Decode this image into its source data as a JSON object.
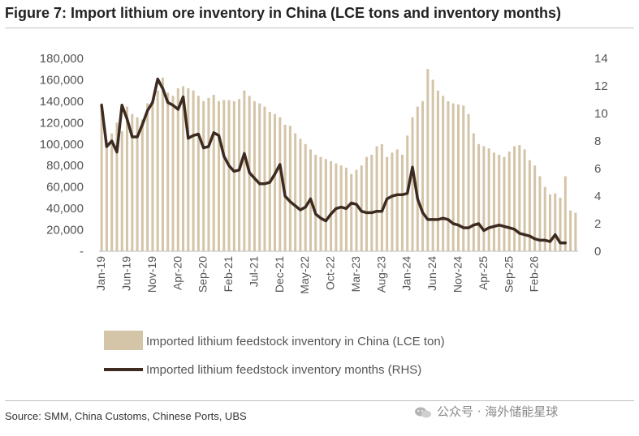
{
  "title": "Figure 7: Import lithium ore inventory in China (LCE tons and inventory months)",
  "source": "Source: SMM, China Customs, Chinese Ports, UBS",
  "watermark": "公众号 · 海外储能星球",
  "colors": {
    "bar": "#d4c4a8",
    "line": "#3d2b22",
    "rule": "#bfbfbf"
  },
  "chart_data": {
    "type": "bar",
    "left_axis": {
      "ylim": [
        0,
        180000
      ],
      "ticks": [
        0,
        20000,
        40000,
        60000,
        80000,
        100000,
        120000,
        140000,
        160000,
        180000
      ],
      "tick_labels": [
        "-",
        "20,000",
        "40,000",
        "60,000",
        "80,000",
        "100,000",
        "120,000",
        "140,000",
        "160,000",
        "180,000"
      ]
    },
    "right_axis": {
      "ylim": [
        0,
        14
      ],
      "ticks": [
        0,
        2,
        4,
        6,
        8,
        10,
        12,
        14
      ],
      "tick_labels": [
        "0",
        "2",
        "4",
        "6",
        "8",
        "10",
        "12",
        "14"
      ]
    },
    "x_tick_labels": [
      "Jan-19",
      "Jun-19",
      "Nov-19",
      "Apr-20",
      "Sep-20",
      "Feb-21",
      "Jul-21",
      "Dec-21",
      "May-22",
      "Oct-22",
      "Mar-23",
      "Aug-23",
      "Jan-24",
      "Jun-24",
      "Nov-24",
      "Apr-25",
      "Sep-25",
      "Feb-26"
    ],
    "series": [
      {
        "name": "Imported lithium feedstock inventory in China (LCE ton)",
        "type": "bar",
        "axis": "left",
        "values": [
          138000,
          100000,
          110000,
          120000,
          112000,
          135000,
          128000,
          125000,
          123000,
          138000,
          140000,
          150000,
          162000,
          148000,
          145000,
          152000,
          154000,
          152000,
          150000,
          145000,
          140000,
          143000,
          146000,
          140000,
          141000,
          141000,
          140000,
          142000,
          150000,
          145000,
          140000,
          138000,
          135000,
          130000,
          128000,
          125000,
          118000,
          117000,
          110000,
          105000,
          100000,
          95000,
          90000,
          88000,
          86000,
          84000,
          82000,
          80000,
          78000,
          72000,
          76000,
          80000,
          88000,
          90000,
          98000,
          100000,
          88000,
          92000,
          95000,
          90000,
          108000,
          125000,
          135000,
          140000,
          170000,
          160000,
          150000,
          145000,
          140000,
          138000,
          137000,
          136000,
          128000,
          110000,
          100000,
          98000,
          96000,
          92000,
          90000,
          88000,
          93000,
          98000,
          99000,
          95000,
          85000,
          80000,
          70000,
          60000,
          53000,
          54000,
          50000,
          70000,
          38000,
          36000
        ],
        "months": "Jan-19 to Oct-26 (monthly)"
      },
      {
        "name": "Imported lithium feedstock inventory months (RHS)",
        "type": "line",
        "axis": "right",
        "values": [
          10.6,
          7.6,
          8.0,
          7.2,
          10.6,
          9.6,
          8.3,
          8.3,
          9.2,
          10.2,
          10.8,
          12.5,
          11.8,
          10.8,
          10.6,
          10.3,
          11.2,
          8.2,
          8.4,
          8.5,
          7.5,
          7.6,
          8.6,
          8.4,
          6.9,
          6.2,
          5.8,
          5.9,
          7.1,
          5.7,
          5.3,
          4.9,
          4.9,
          5.0,
          5.6,
          6.3,
          4.0,
          3.6,
          3.3,
          3.0,
          3.2,
          3.8,
          2.7,
          2.4,
          2.2,
          2.7,
          3.1,
          3.2,
          3.1,
          3.5,
          3.4,
          2.9,
          2.8,
          2.8,
          2.9,
          2.9,
          3.8,
          4.0,
          4.1,
          4.1,
          4.2,
          6.1,
          3.8,
          2.8,
          2.3,
          2.3,
          2.3,
          2.4,
          2.3,
          2.0,
          1.9,
          1.7,
          1.7,
          1.9,
          2.0,
          1.5,
          1.7,
          1.8,
          1.9,
          1.8,
          1.7,
          1.6,
          1.3,
          1.2,
          1.1,
          0.9,
          0.8,
          0.8,
          0.7,
          1.2,
          0.6,
          0.6
        ]
      }
    ],
    "legend": "bottom",
    "grid": false
  }
}
